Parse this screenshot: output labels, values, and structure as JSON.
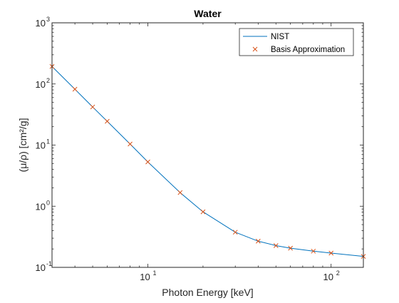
{
  "chart_data": {
    "type": "line",
    "title": "Water",
    "xlabel": "Photon Energy [keV]",
    "ylabel": "(μ/ρ) [cm²/g]",
    "xscale": "log",
    "yscale": "log",
    "xlim": [
      3,
      150
    ],
    "ylim": [
      0.1,
      1000
    ],
    "grid": false,
    "legend_position": "top-right",
    "x_ticks": [
      {
        "value": 10,
        "base": "10",
        "exp": "1"
      },
      {
        "value": 100,
        "base": "10",
        "exp": "2"
      }
    ],
    "y_ticks": [
      {
        "value": 0.1,
        "base": "10",
        "exp": "-1"
      },
      {
        "value": 1,
        "base": "10",
        "exp": "0"
      },
      {
        "value": 10,
        "base": "10",
        "exp": "1"
      },
      {
        "value": 100,
        "base": "10",
        "exp": "2"
      },
      {
        "value": 1000,
        "base": "10",
        "exp": "3"
      }
    ],
    "series": [
      {
        "name": "NIST",
        "style": "line",
        "color": "#0072BD",
        "x": [
          3,
          4,
          5,
          6,
          8,
          10,
          15,
          20,
          30,
          40,
          50,
          60,
          80,
          100,
          150
        ],
        "y": [
          193,
          82,
          42,
          24.5,
          10.4,
          5.3,
          1.67,
          0.81,
          0.376,
          0.268,
          0.227,
          0.206,
          0.184,
          0.171,
          0.151
        ]
      },
      {
        "name": "Basis Approximation",
        "style": "marker-x",
        "color": "#D95319",
        "x": [
          3,
          4,
          5,
          6,
          8,
          10,
          15,
          20,
          30,
          40,
          50,
          60,
          80,
          100,
          150
        ],
        "y": [
          193,
          82,
          42,
          24.5,
          10.4,
          5.3,
          1.67,
          0.81,
          0.376,
          0.268,
          0.227,
          0.206,
          0.184,
          0.171,
          0.151
        ]
      }
    ]
  }
}
